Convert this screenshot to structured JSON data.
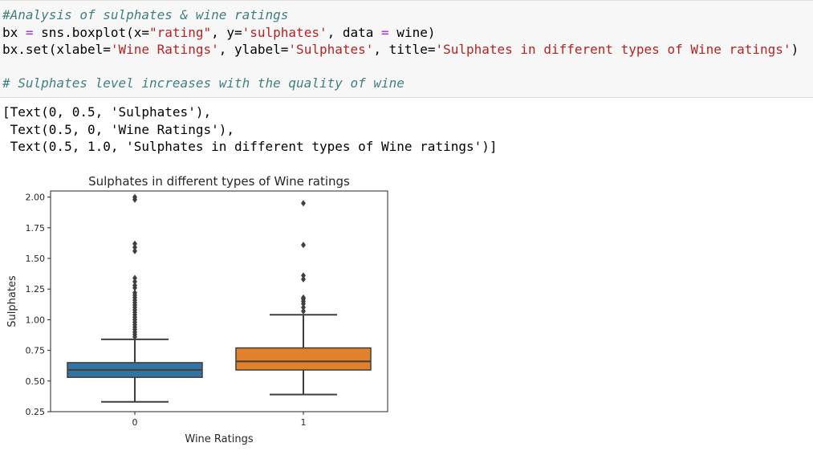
{
  "code": {
    "comment1": "#Analysis of sulphates & wine ratings",
    "line2": {
      "bx": "bx",
      "eq": " = ",
      "call": "sns.boxplot(x=",
      "x_str": "\"rating\"",
      "sep1": ", y=",
      "y_str": "'sulphates'",
      "sep2": ", data ",
      "eq2": "=",
      "tail": " wine)"
    },
    "line3": {
      "head": "bx.set(xlabel=",
      "xlabel_str": "'Wine Ratings'",
      "mid1": ", ylabel=",
      "ylabel_str": "'Sulphates'",
      "mid2": ", title=",
      "title_str": "'Sulphates in different types of Wine ratings'",
      "tail": ")"
    },
    "comment2": "# Sulphates level increases with the quality of wine"
  },
  "output_lines": [
    "[Text(0, 0.5, 'Sulphates'),",
    " Text(0.5, 0, 'Wine Ratings'),",
    " Text(0.5, 1.0, 'Sulphates in different types of Wine ratings')]"
  ],
  "chart_data": {
    "type": "box",
    "title": "Sulphates in different types of Wine ratings",
    "xlabel": "Wine Ratings",
    "ylabel": "Sulphates",
    "categories": [
      "0",
      "1"
    ],
    "ylim": [
      0.25,
      2.05
    ],
    "yticks": [
      "0.25",
      "0.50",
      "0.75",
      "1.00",
      "1.25",
      "1.50",
      "1.75",
      "2.00"
    ],
    "grid": false,
    "boxes": [
      {
        "category": "0",
        "color": "#3274a1",
        "whisker_low": 0.33,
        "q1": 0.53,
        "median": 0.59,
        "q3": 0.65,
        "whisker_high": 0.84,
        "outliers": [
          0.86,
          0.88,
          0.9,
          0.92,
          0.94,
          0.96,
          0.98,
          1.0,
          1.02,
          1.04,
          1.06,
          1.08,
          1.1,
          1.12,
          1.14,
          1.16,
          1.18,
          1.2,
          1.22,
          1.26,
          1.28,
          1.31,
          1.34,
          1.56,
          1.59,
          1.62,
          1.98,
          2.0
        ]
      },
      {
        "category": "1",
        "color": "#e1812c",
        "whisker_low": 0.39,
        "q1": 0.59,
        "median": 0.66,
        "q3": 0.77,
        "whisker_high": 1.04,
        "outliers": [
          1.07,
          1.1,
          1.13,
          1.15,
          1.17,
          1.18,
          1.33,
          1.36,
          1.61,
          1.95
        ]
      }
    ]
  }
}
